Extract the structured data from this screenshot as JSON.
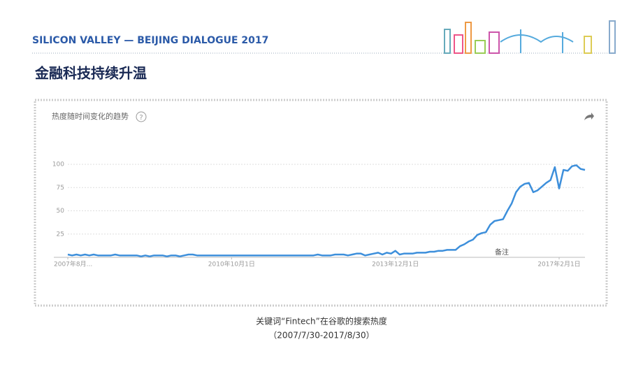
{
  "header": {
    "event": "SILICON VALLEY — BEIJING DIALOGUE 2017",
    "title": "金融科技持续升温"
  },
  "chart_data": {
    "type": "line",
    "title": "热度随时间变化的趋势",
    "color": "#3d8fdb",
    "values": [
      3,
      2,
      3,
      2,
      3,
      2,
      3,
      2,
      2,
      2,
      2,
      3,
      2,
      2,
      2,
      2,
      2,
      1,
      2,
      1,
      2,
      2,
      2,
      1,
      2,
      2,
      1,
      2,
      3,
      3,
      2,
      2,
      2,
      2,
      2,
      2,
      2,
      2,
      2,
      2,
      2,
      2,
      2,
      2,
      2,
      2,
      2,
      2,
      2,
      2,
      2,
      2,
      2,
      2,
      2,
      2,
      2,
      2,
      3,
      2,
      2,
      2,
      3,
      3,
      3,
      2,
      3,
      4,
      4,
      2,
      3,
      4,
      5,
      3,
      5,
      4,
      7,
      3,
      4,
      4,
      4,
      5,
      5,
      5,
      6,
      6,
      7,
      7,
      8,
      8,
      8,
      12,
      14,
      17,
      19,
      24,
      26,
      27,
      35,
      39,
      40,
      41,
      50,
      58,
      70,
      76,
      79,
      80,
      70,
      72,
      76,
      80,
      83,
      97,
      74,
      94,
      93,
      98,
      99,
      95,
      94
    ],
    "xlim": [
      0,
      120
    ],
    "xticks": [
      {
        "value": 0,
        "label": "2007年8月..."
      },
      {
        "value": 38,
        "label": "2010年10月1日"
      },
      {
        "value": 76,
        "label": "2013年12月1日"
      },
      {
        "value": 114,
        "label": "2017年2月1日"
      }
    ],
    "ylim": [
      0,
      100
    ],
    "yticks": [
      25,
      50,
      75,
      100
    ],
    "grid": true,
    "annotation": "备注"
  },
  "caption": {
    "line1": "关键词“Fintech”在谷歌的搜索热度",
    "line2": "（2007/7/30-2017/8/30）"
  }
}
